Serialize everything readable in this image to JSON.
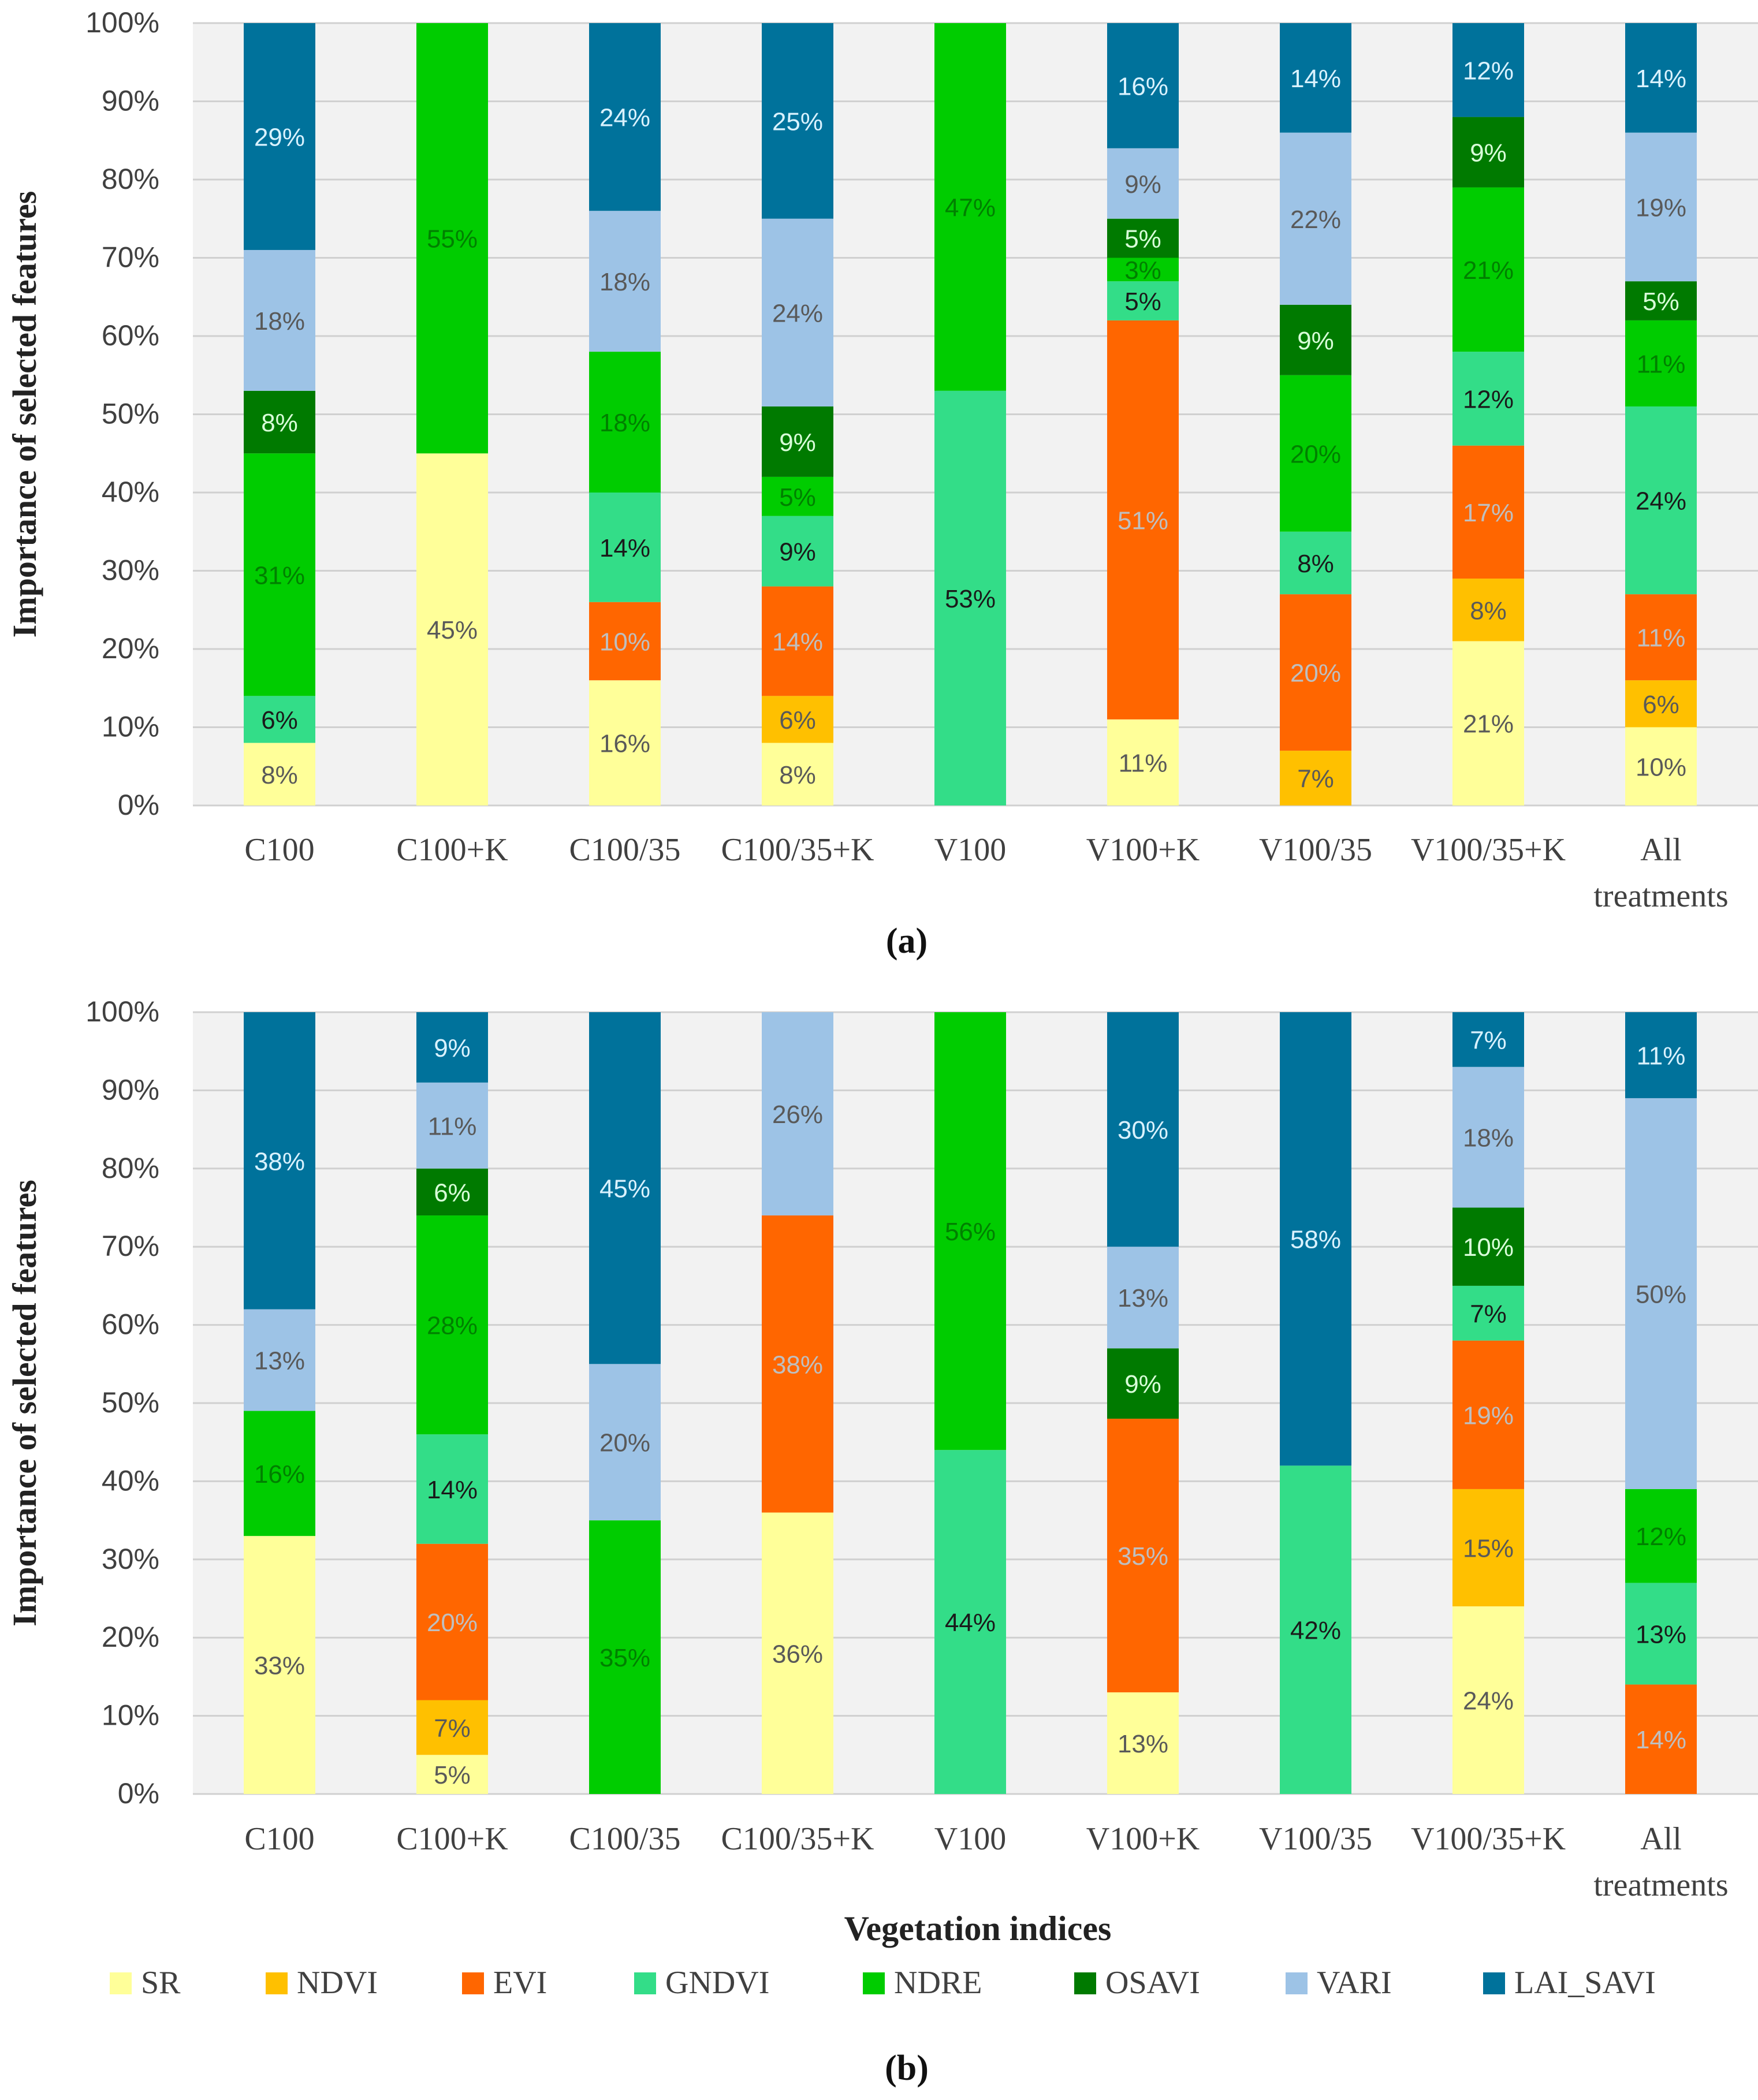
{
  "chart_data": [
    {
      "type": "bar",
      "stacked": true,
      "title": "",
      "panel_label": "(a)",
      "xlabel": "",
      "ylabel": "Importance of selected features",
      "ylim": [
        0,
        100
      ],
      "y_ticks": [
        "0%",
        "10%",
        "20%",
        "30%",
        "40%",
        "50%",
        "60%",
        "70%",
        "80%",
        "90%",
        "100%"
      ],
      "grid": true,
      "categories": [
        "C100",
        "C100+K",
        "C100/35",
        "C100/35+K",
        "V100",
        "V100+K",
        "V100/35",
        "V100/35+K",
        "All treatments"
      ],
      "series": [
        {
          "name": "SR",
          "values": [
            8,
            45,
            16,
            8,
            0,
            11,
            0,
            21,
            10
          ]
        },
        {
          "name": "NDVI",
          "values": [
            0,
            0,
            0,
            6,
            0,
            0,
            7,
            8,
            6
          ]
        },
        {
          "name": "EVI",
          "values": [
            0,
            0,
            10,
            14,
            0,
            51,
            20,
            17,
            11
          ]
        },
        {
          "name": "GNDVI",
          "values": [
            6,
            0,
            14,
            9,
            53,
            5,
            8,
            12,
            24
          ]
        },
        {
          "name": "NDRE",
          "values": [
            31,
            55,
            18,
            5,
            47,
            3,
            20,
            21,
            11
          ]
        },
        {
          "name": "OSAVI",
          "values": [
            8,
            0,
            0,
            9,
            0,
            5,
            9,
            9,
            5
          ]
        },
        {
          "name": "VARI",
          "values": [
            18,
            0,
            18,
            24,
            0,
            9,
            22,
            0,
            19
          ]
        },
        {
          "name": "LAI_SAVI",
          "values": [
            29,
            0,
            24,
            25,
            0,
            16,
            14,
            12,
            14
          ]
        }
      ]
    },
    {
      "type": "bar",
      "stacked": true,
      "title": "",
      "panel_label": "(b)",
      "xlabel": "Vegetation indices",
      "ylabel": "Importance of selected features",
      "ylim": [
        0,
        100
      ],
      "y_ticks": [
        "0%",
        "10%",
        "20%",
        "30%",
        "40%",
        "50%",
        "60%",
        "70%",
        "80%",
        "90%",
        "100%"
      ],
      "grid": true,
      "categories": [
        "C100",
        "C100+K",
        "C100/35",
        "C100/35+K",
        "V100",
        "V100+K",
        "V100/35",
        "V100/35+K",
        "All treatments"
      ],
      "series": [
        {
          "name": "SR",
          "values": [
            33,
            5,
            0,
            36,
            0,
            13,
            0,
            24,
            0
          ]
        },
        {
          "name": "NDVI",
          "values": [
            0,
            7,
            0,
            0,
            0,
            0,
            0,
            15,
            0
          ]
        },
        {
          "name": "EVI",
          "values": [
            0,
            20,
            0,
            38,
            0,
            35,
            0,
            19,
            14
          ]
        },
        {
          "name": "GNDVI",
          "values": [
            0,
            14,
            0,
            0,
            44,
            0,
            42,
            7,
            13
          ]
        },
        {
          "name": "NDRE",
          "values": [
            16,
            28,
            35,
            0,
            56,
            0,
            0,
            0,
            12
          ]
        },
        {
          "name": "OSAVI",
          "values": [
            0,
            6,
            0,
            0,
            0,
            9,
            0,
            10,
            0
          ]
        },
        {
          "name": "VARI",
          "values": [
            13,
            11,
            20,
            26,
            0,
            13,
            0,
            18,
            50
          ]
        },
        {
          "name": "LAI_SAVI",
          "values": [
            38,
            9,
            45,
            0,
            0,
            30,
            58,
            7,
            11
          ]
        }
      ]
    }
  ],
  "legend": {
    "placement": "bottom",
    "items": [
      {
        "name": "SR",
        "color": "#FFFF99"
      },
      {
        "name": "NDVI",
        "color": "#FFC000"
      },
      {
        "name": "EVI",
        "color": "#FF6600"
      },
      {
        "name": "GNDVI",
        "color": "#33DD88"
      },
      {
        "name": "NDRE",
        "color": "#00CC00"
      },
      {
        "name": "OSAVI",
        "color": "#007A00"
      },
      {
        "name": "VARI",
        "color": "#9DC3E6"
      },
      {
        "name": "LAI_SAVI",
        "color": "#00729B"
      }
    ]
  },
  "label_colors": {
    "SR": "#595959",
    "NDVI": "#595959",
    "EVI": "#BFBFBF",
    "GNDVI": "#1A1A1A",
    "NDRE": "#008000",
    "OSAVI": "#D9FFD9",
    "VARI": "#595959",
    "LAI_SAVI": "#D9F2FF"
  }
}
